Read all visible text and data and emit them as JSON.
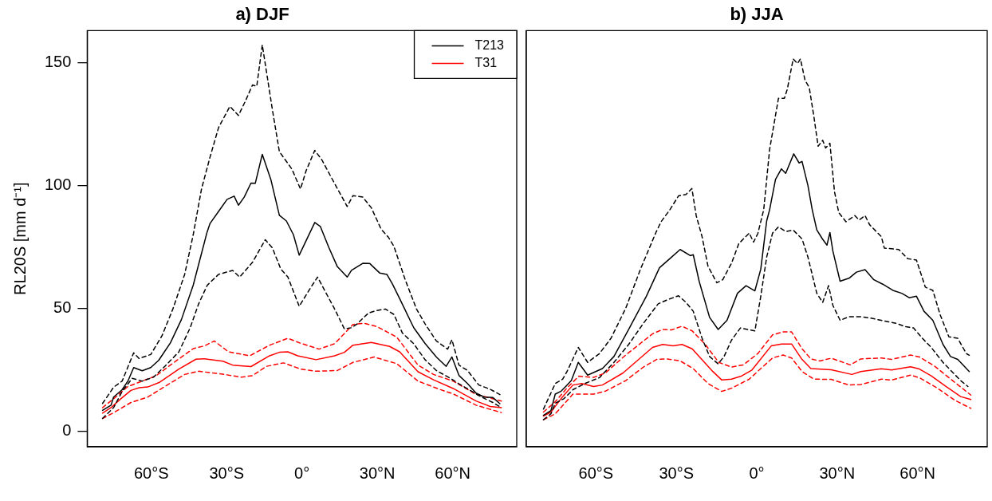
{
  "chart_data": [
    {
      "type": "line",
      "title": "a) DJF",
      "ylabel": "RL20S [mm d⁻¹]",
      "legend": "top right",
      "xlim": [
        -85.5,
        85.5
      ],
      "ylim": [
        -6.2,
        163
      ],
      "xticks": [
        {
          "value": -60,
          "label": "60°S"
        },
        {
          "value": -30,
          "label": "30°S"
        },
        {
          "value": 0,
          "label": "0°"
        },
        {
          "value": 30,
          "label": "30°N"
        },
        {
          "value": 60,
          "label": "60°N"
        }
      ],
      "yticks": [
        0,
        50,
        100,
        150
      ],
      "series": [
        {
          "name": "T213",
          "color": "#000000",
          "line_style": "solid",
          "x": [
            -79.4,
            -76,
            -75,
            -71.6,
            -69.3,
            -67,
            -63.6,
            -60.2,
            -57,
            -52.4,
            -48,
            -43.3,
            -37.8,
            -36.6,
            -33.2,
            -29.8,
            -27,
            -25.3,
            -23,
            -20.3,
            -18.6,
            -15.8,
            -12.4,
            -9,
            -6.2,
            -3.4,
            -1.1,
            2.3,
            5.1,
            7.3,
            10.7,
            14.1,
            18,
            19.7,
            24.2,
            27,
            31,
            33.8,
            36,
            38.9,
            44.5,
            49,
            53.5,
            57.4,
            59.7,
            62.5,
            65.9,
            69.3,
            72.6,
            76,
            78.8
          ],
          "values": [
            8.6,
            10.7,
            14,
            17,
            20.5,
            26,
            24.7,
            26,
            29,
            36,
            45.5,
            59.5,
            81,
            84.6,
            89.5,
            94.4,
            95.7,
            92,
            95.3,
            101,
            100.9,
            112.7,
            102.5,
            87.9,
            85.6,
            80,
            71.7,
            79,
            85,
            83.4,
            74.8,
            67,
            62.8,
            65.5,
            68.4,
            68.3,
            64.4,
            63.9,
            60,
            54,
            42.2,
            35.8,
            30.3,
            26.5,
            30.3,
            22.8,
            19.5,
            15.6,
            14,
            13.8,
            11.3
          ]
        },
        {
          "color": "#000000",
          "line_style": "dashed",
          "x": [
            -79.4,
            -75,
            -71.6,
            -67,
            -64.9,
            -60.2,
            -55.7,
            -51.4,
            -46.7,
            -43.3,
            -40,
            -36.6,
            -33.2,
            -28.7,
            -25.3,
            -22.5,
            -19.7,
            -18,
            -15.8,
            -11.8,
            -9,
            -4,
            -0.6,
            1.7,
            5.1,
            7.9,
            13,
            18,
            20.3,
            24.2,
            27.6,
            31.5,
            34.4,
            36.6,
            41.1,
            45.6,
            49,
            53.5,
            58,
            59.7,
            62.5,
            65.9,
            70.4,
            74.9,
            78.8
          ],
          "values": [
            11.4,
            18,
            20.5,
            32,
            29.7,
            31.3,
            39,
            49.8,
            63.9,
            80,
            98.6,
            111.6,
            123.6,
            132.2,
            128.5,
            134.4,
            140.9,
            140.4,
            157.2,
            131,
            113.8,
            106.7,
            98.6,
            106.2,
            114.3,
            110.5,
            100.8,
            91.5,
            95.9,
            95.3,
            91,
            82.3,
            79,
            75.3,
            61.7,
            49.8,
            43.8,
            36.8,
            33.5,
            37.3,
            27,
            24.8,
            18.9,
            17.2,
            15
          ]
        },
        {
          "color": "#000000",
          "line_style": "dashed",
          "x": [
            -79.4,
            -75,
            -71.6,
            -67.6,
            -63.6,
            -59.1,
            -54.6,
            -49,
            -44.5,
            -41.1,
            -37.7,
            -33.2,
            -27.6,
            -24.8,
            -19.7,
            -14.6,
            -11.8,
            -8.4,
            -5.6,
            -1.1,
            2.8,
            6.2,
            9.6,
            13,
            16.9,
            19.7,
            22,
            26.5,
            29.8,
            33.2,
            36.6,
            40,
            44.5,
            49,
            53.5,
            59.1,
            62.5,
            67,
            71.5,
            76,
            79.4
          ],
          "values": [
            5.3,
            9.7,
            16.3,
            21.6,
            20.5,
            22.1,
            26.5,
            32.4,
            42.2,
            52,
            59.5,
            63.9,
            65.5,
            62.8,
            68.8,
            78,
            74.7,
            66,
            62.8,
            50.9,
            57.4,
            62.8,
            56.3,
            49.8,
            41.7,
            42.2,
            43.8,
            48.2,
            49.2,
            49.8,
            47.6,
            40,
            35.7,
            29.2,
            24.8,
            21.6,
            19.4,
            16.7,
            14,
            11.8,
            9.7
          ]
        },
        {
          "name": "T31",
          "color": "#ff0000",
          "line_style": "solid",
          "x": [
            -79.4,
            -76,
            -72.6,
            -68.1,
            -64.8,
            -61.4,
            -56.9,
            -49,
            -42.2,
            -38.9,
            -31.5,
            -27.6,
            -20.3,
            -12.9,
            -9,
            -5.6,
            -1.7,
            5.6,
            13,
            16.9,
            20.3,
            27.6,
            34.9,
            38.9,
            46.2,
            52.4,
            60.2,
            69.3,
            74.9,
            79.4
          ],
          "values": [
            7.5,
            9.7,
            12.9,
            16.7,
            17.8,
            18.1,
            19.9,
            25.4,
            29.4,
            29.6,
            28.6,
            27,
            26.4,
            30.8,
            32.2,
            32.4,
            30.8,
            29.2,
            30.8,
            32.2,
            35.1,
            36.2,
            34.6,
            32.4,
            24.3,
            21,
            17.5,
            12.4,
            10.2,
            9.7
          ]
        },
        {
          "color": "#ff0000",
          "line_style": "dashed",
          "x": [
            -79.4,
            -74.9,
            -69.3,
            -63.6,
            -58,
            -52.4,
            -43.3,
            -38.9,
            -34.9,
            -29.3,
            -20.8,
            -12.9,
            -5.6,
            -0.6,
            6.8,
            13,
            20.3,
            24.8,
            29.8,
            37.7,
            46.2,
            52.4,
            60.2,
            69.3,
            79.4
          ],
          "values": [
            9.7,
            13.4,
            18.3,
            20.5,
            22.7,
            27,
            33.7,
            34.8,
            36.8,
            32.4,
            30.8,
            35.1,
            37.9,
            35.9,
            33.5,
            35.7,
            43.5,
            44,
            42.7,
            38.4,
            27,
            23.2,
            20.5,
            15.1,
            12.4
          ]
        },
        {
          "color": "#ff0000",
          "line_style": "dashed",
          "x": [
            -79.4,
            -74.9,
            -68.1,
            -61.4,
            -54.6,
            -46.7,
            -41.1,
            -32.1,
            -24.2,
            -19.7,
            -14.1,
            -7.3,
            -0.6,
            5.6,
            14.1,
            20.3,
            28.7,
            37.7,
            46.2,
            54.6,
            60.2,
            69.3,
            79.4
          ],
          "values": [
            5.3,
            7.7,
            11.8,
            14,
            18.3,
            23.2,
            24.5,
            23.4,
            22.1,
            22.7,
            26.5,
            27.9,
            25.4,
            24.5,
            24.8,
            28.1,
            30.3,
            27.6,
            20.5,
            17.2,
            15.3,
            10.7,
            7.7
          ]
        }
      ]
    },
    {
      "type": "line",
      "title": "b) JJA",
      "tick_labels": "x",
      "xlim": [
        -86,
        86
      ],
      "ylim": [
        -6.2,
        163
      ],
      "xticks": [
        {
          "value": -60,
          "label": "60°S"
        },
        {
          "value": -30,
          "label": "30°S"
        },
        {
          "value": 0,
          "label": "0°"
        },
        {
          "value": 30,
          "label": "30°N"
        },
        {
          "value": 60,
          "label": "60°N"
        }
      ],
      "yticks": [
        0,
        50,
        100,
        150
      ],
      "series": [
        {
          "color": "#000000",
          "line_style": "solid",
          "x": [
            -79.6,
            -76.8,
            -75.2,
            -73,
            -71.3,
            -69.2,
            -66.6,
            -63.1,
            -57.6,
            -53.3,
            -47.8,
            -41.2,
            -36.3,
            -32.4,
            -28.6,
            -24.8,
            -23.7,
            -21.5,
            -17.6,
            -14.4,
            -11.1,
            -7.2,
            -4,
            -0.7,
            1.5,
            3.7,
            4.8,
            7,
            9.2,
            10.8,
            13.8,
            15.8,
            16.9,
            19.1,
            20.7,
            22.4,
            24.5,
            26.2,
            27.3,
            28.4,
            31.1,
            34.4,
            37.2,
            40.4,
            43.7,
            47,
            50.8,
            54.1,
            56.9,
            59.6,
            62.4,
            65.7,
            69.5,
            72.3,
            75,
            77.2,
            79.3
          ],
          "values": [
            6.6,
            8.5,
            15.2,
            16.4,
            18.3,
            20.7,
            28.1,
            22.9,
            25.6,
            30.5,
            41.5,
            55,
            66.6,
            70.3,
            74,
            71.5,
            71.9,
            61.1,
            46.4,
            41.5,
            45.2,
            56.2,
            59.3,
            57.2,
            66,
            85.6,
            90.2,
            102.5,
            106.8,
            105,
            112.9,
            109.2,
            109.8,
            100,
            90.2,
            82,
            78.3,
            75.8,
            80.9,
            73.4,
            61.1,
            62.3,
            64.8,
            65.8,
            61.7,
            59.9,
            57.4,
            56.2,
            54.4,
            55,
            48.9,
            45.2,
            35.4,
            30.5,
            29.3,
            26.8,
            24.4
          ]
        },
        {
          "color": "#000000",
          "line_style": "dashed",
          "x": [
            -79.6,
            -75.2,
            -72.4,
            -70.8,
            -66.6,
            -63.1,
            -58.7,
            -54.4,
            -48.9,
            -43.4,
            -37.6,
            -35.7,
            -32.4,
            -29.2,
            -26.4,
            -24.2,
            -22.6,
            -20.4,
            -18.2,
            -14.9,
            -12.7,
            -9.4,
            -6.7,
            -2.8,
            -1.2,
            0.4,
            2.6,
            4.8,
            8.1,
            10.3,
            11.4,
            13.6,
            15.2,
            16.3,
            18,
            19.6,
            21.3,
            22.9,
            24.6,
            25.7,
            27.3,
            29,
            30.6,
            33.3,
            36.6,
            38.2,
            40.4,
            42.1,
            46.5,
            47.6,
            53,
            56.3,
            59.6,
            62.9,
            65.7,
            68.4,
            71.7,
            75,
            78.2,
            79.3
          ],
          "values": [
            9.1,
            19.5,
            21.3,
            24.4,
            34.2,
            28.1,
            31.7,
            37.9,
            50.1,
            66,
            81,
            85.3,
            90.2,
            95.8,
            96.4,
            98.8,
            87.8,
            79.2,
            67.2,
            60.5,
            61.7,
            68.5,
            76.4,
            80.7,
            77,
            80.5,
            90.2,
            114.7,
            135.5,
            135.5,
            139.2,
            151.5,
            149.6,
            151.5,
            142.9,
            139.8,
            128.2,
            116,
            118.4,
            115.3,
            117.2,
            97.6,
            89,
            85.3,
            87.8,
            86,
            87.8,
            84.1,
            79.2,
            74.6,
            74,
            70.3,
            69.7,
            58.7,
            57.4,
            47.6,
            38.5,
            37.9,
            31.7,
            31
          ]
        },
        {
          "color": "#000000",
          "line_style": "dashed",
          "x": [
            -79.6,
            -76.8,
            -75.2,
            -71.9,
            -68.6,
            -64.2,
            -58.7,
            -53.3,
            -47.8,
            -42.3,
            -36.8,
            -33.5,
            -29.2,
            -26.4,
            -23.7,
            -20.4,
            -17.6,
            -14.4,
            -12.2,
            -9.4,
            -6.1,
            -0.7,
            1.5,
            3.7,
            5.9,
            8.1,
            10.8,
            13.6,
            16.9,
            19.1,
            22.4,
            24.6,
            26.8,
            28.4,
            31.1,
            34.4,
            38.8,
            42.1,
            46.5,
            52,
            55.3,
            58.5,
            61.8,
            65.1,
            69.5,
            72.8,
            76.1,
            78.8
          ],
          "values": [
            4.8,
            7.2,
            11.5,
            13.4,
            17,
            19.5,
            21.9,
            28.1,
            35.4,
            44,
            51.9,
            53.5,
            55.2,
            52.5,
            48.9,
            37.9,
            30.5,
            27.5,
            30.5,
            37.2,
            42.1,
            40.9,
            55,
            70.9,
            80.7,
            83.2,
            81.3,
            81.9,
            78.3,
            70.9,
            56.2,
            52.5,
            59.3,
            51.3,
            45.2,
            46.7,
            46.7,
            46.2,
            45.2,
            44,
            42.7,
            42.1,
            37.9,
            34.2,
            28.1,
            24.4,
            20.7,
            18.3
          ]
        },
        {
          "color": "#ff0000",
          "line_style": "solid",
          "x": [
            -79.6,
            -76.8,
            -73,
            -68.6,
            -65.3,
            -60.9,
            -57.6,
            -49.9,
            -38.9,
            -35.1,
            -31.2,
            -27.9,
            -24.1,
            -16.4,
            -13.1,
            -9.4,
            -5.6,
            -1.8,
            5.4,
            9.2,
            13,
            16.9,
            20.2,
            27.8,
            35.5,
            38.8,
            46.5,
            50.3,
            57.4,
            60.7,
            65.1,
            70.6,
            76.1,
            79.9
          ],
          "values": [
            6.3,
            7.9,
            13.4,
            18.9,
            19.5,
            18.3,
            18.9,
            23.8,
            34.2,
            35.4,
            34.8,
            35.4,
            33.6,
            24.4,
            21,
            21.3,
            22.6,
            25,
            34.8,
            35.6,
            35.6,
            29.3,
            25.6,
            25.1,
            23.2,
            24.4,
            25.5,
            25,
            26.3,
            25.4,
            22.6,
            18.3,
            14.2,
            13
          ]
        },
        {
          "color": "#ff0000",
          "line_style": "dashed",
          "x": [
            -79.6,
            -75.2,
            -70.8,
            -66.4,
            -60.9,
            -56.5,
            -48.9,
            -38.9,
            -35.1,
            -31.8,
            -27.9,
            -24.1,
            -19.2,
            -14.2,
            -9.4,
            -5,
            0.4,
            5.9,
            9.8,
            13,
            16.9,
            20.2,
            23.5,
            27.8,
            34.9,
            38.8,
            46.5,
            50.3,
            57.4,
            60.7,
            66.1,
            71.7,
            79.9
          ],
          "values": [
            7.9,
            12.1,
            17.7,
            22.5,
            22,
            23.8,
            31.1,
            39.7,
            41.5,
            41.3,
            42.8,
            40.9,
            35.4,
            28.1,
            26.2,
            27.1,
            31.7,
            39.3,
            40.5,
            40.5,
            33.6,
            29.5,
            28.7,
            29.8,
            27.1,
            29.5,
            29.9,
            29.3,
            31.1,
            30.3,
            26.8,
            21.9,
            14.8
          ]
        },
        {
          "color": "#ff0000",
          "line_style": "dashed",
          "x": [
            -79.6,
            -75.2,
            -68.6,
            -60.9,
            -56.5,
            -48.9,
            -42.3,
            -37.4,
            -33.5,
            -28.6,
            -23.7,
            -18.2,
            -13.1,
            -9.4,
            -2.8,
            1.5,
            5.9,
            9.8,
            13,
            16.9,
            21.3,
            27.8,
            34.4,
            38.8,
            46.5,
            50.3,
            57.4,
            60.7,
            67.3,
            73.9,
            79.9
          ],
          "values": [
            4.8,
            7.2,
            15.2,
            15.2,
            16.4,
            20.7,
            26.2,
            29.3,
            29.5,
            28.7,
            25.6,
            19.5,
            16.3,
            17.6,
            21.3,
            25.6,
            29.9,
            31.1,
            29.9,
            24.4,
            21.3,
            21.2,
            18.9,
            19.1,
            21.3,
            20.9,
            22.9,
            21.9,
            17.7,
            12.7,
            9.4
          ]
        }
      ]
    }
  ]
}
